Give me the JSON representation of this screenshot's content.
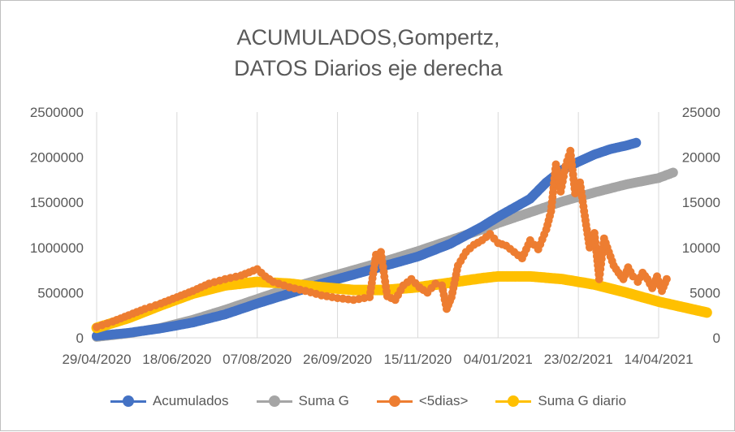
{
  "chart_data": {
    "type": "line",
    "title_line1": "ACUMULADOS,Gompertz,",
    "title_line2": "DATOS Diarios eje derecha",
    "x_tick_labels": [
      "29/04/2020",
      "18/06/2020",
      "07/08/2020",
      "26/09/2020",
      "15/11/2020",
      "04/01/2021",
      "23/02/2021",
      "14/04/2021"
    ],
    "x_range": [
      "29/04/2020",
      "14/04/2021"
    ],
    "y_left_ticks": [
      "0",
      "500000",
      "1000000",
      "1500000",
      "2000000",
      "2500000"
    ],
    "y_left_range": [
      0,
      2500000
    ],
    "y_right_ticks": [
      "0",
      "5000",
      "10000",
      "15000",
      "20000",
      "25000"
    ],
    "y_right_range": [
      0,
      25000
    ],
    "grid": "vertical",
    "legend_position": "bottom",
    "series": [
      {
        "name": "Acumulados",
        "axis": "left",
        "color": "#4472c4",
        "points": [
          [
            "2020-04-29",
            20000
          ],
          [
            "2020-05-19",
            55000
          ],
          [
            "2020-06-08",
            105000
          ],
          [
            "2020-06-28",
            170000
          ],
          [
            "2020-07-18",
            260000
          ],
          [
            "2020-08-07",
            380000
          ],
          [
            "2020-08-27",
            490000
          ],
          [
            "2020-09-16",
            600000
          ],
          [
            "2020-10-06",
            700000
          ],
          [
            "2020-10-26",
            800000
          ],
          [
            "2020-11-15",
            900000
          ],
          [
            "2020-12-05",
            1040000
          ],
          [
            "2020-12-25",
            1230000
          ],
          [
            "2021-01-04",
            1340000
          ],
          [
            "2021-01-24",
            1540000
          ],
          [
            "2021-02-03",
            1720000
          ],
          [
            "2021-02-13",
            1860000
          ],
          [
            "2021-02-23",
            1950000
          ],
          [
            "2021-03-05",
            2030000
          ],
          [
            "2021-03-15",
            2090000
          ],
          [
            "2021-03-25",
            2130000
          ],
          [
            "2021-03-31",
            2160000
          ]
        ]
      },
      {
        "name": "Suma G",
        "axis": "left",
        "color": "#a5a5a5",
        "points": [
          [
            "2020-04-29",
            10000
          ],
          [
            "2020-05-19",
            50000
          ],
          [
            "2020-06-08",
            110000
          ],
          [
            "2020-06-28",
            200000
          ],
          [
            "2020-07-18",
            310000
          ],
          [
            "2020-08-07",
            430000
          ],
          [
            "2020-08-27",
            550000
          ],
          [
            "2020-09-16",
            650000
          ],
          [
            "2020-10-06",
            750000
          ],
          [
            "2020-10-26",
            850000
          ],
          [
            "2020-11-15",
            960000
          ],
          [
            "2020-12-05",
            1080000
          ],
          [
            "2020-12-25",
            1200000
          ],
          [
            "2021-01-04",
            1270000
          ],
          [
            "2021-01-24",
            1390000
          ],
          [
            "2021-02-13",
            1510000
          ],
          [
            "2021-03-05",
            1610000
          ],
          [
            "2021-03-25",
            1700000
          ],
          [
            "2021-04-14",
            1770000
          ],
          [
            "2021-04-23",
            1830000
          ]
        ]
      },
      {
        "name": "<5dias>",
        "axis": "right",
        "color": "#ed7d31",
        "points": [
          [
            "2020-04-29",
            1200
          ],
          [
            "2020-05-09",
            1800
          ],
          [
            "2020-05-19",
            2500
          ],
          [
            "2020-05-29",
            3200
          ],
          [
            "2020-06-08",
            3800
          ],
          [
            "2020-06-18",
            4500
          ],
          [
            "2020-06-28",
            5200
          ],
          [
            "2020-07-08",
            6000
          ],
          [
            "2020-07-18",
            6500
          ],
          [
            "2020-07-28",
            6900
          ],
          [
            "2020-08-07",
            7600
          ],
          [
            "2020-08-12",
            6800
          ],
          [
            "2020-08-17",
            6200
          ],
          [
            "2020-08-27",
            5600
          ],
          [
            "2020-09-06",
            5200
          ],
          [
            "2020-09-16",
            4700
          ],
          [
            "2020-09-26",
            4400
          ],
          [
            "2020-10-06",
            4200
          ],
          [
            "2020-10-16",
            4500
          ],
          [
            "2020-10-20",
            9200
          ],
          [
            "2020-10-23",
            9500
          ],
          [
            "2020-10-27",
            4600
          ],
          [
            "2020-11-01",
            4200
          ],
          [
            "2020-11-06",
            5800
          ],
          [
            "2020-11-11",
            6500
          ],
          [
            "2020-11-16",
            5600
          ],
          [
            "2020-11-21",
            5000
          ],
          [
            "2020-11-26",
            6000
          ],
          [
            "2020-11-30",
            5800
          ],
          [
            "2020-12-03",
            3200
          ],
          [
            "2020-12-06",
            4500
          ],
          [
            "2020-12-10",
            8000
          ],
          [
            "2020-12-15",
            9500
          ],
          [
            "2020-12-20",
            10300
          ],
          [
            "2020-12-25",
            10800
          ],
          [
            "2020-12-30",
            11500
          ],
          [
            "2021-01-04",
            10500
          ],
          [
            "2021-01-09",
            10200
          ],
          [
            "2021-01-14",
            9500
          ],
          [
            "2021-01-19",
            8800
          ],
          [
            "2021-01-24",
            10800
          ],
          [
            "2021-01-29",
            9800
          ],
          [
            "2021-02-03",
            12000
          ],
          [
            "2021-02-06",
            14000
          ],
          [
            "2021-02-09",
            19200
          ],
          [
            "2021-02-12",
            16200
          ],
          [
            "2021-02-15",
            19000
          ],
          [
            "2021-02-18",
            20700
          ],
          [
            "2021-02-21",
            16000
          ],
          [
            "2021-02-24",
            17200
          ],
          [
            "2021-02-27",
            13500
          ],
          [
            "2021-03-02",
            10000
          ],
          [
            "2021-03-05",
            11600
          ],
          [
            "2021-03-08",
            6500
          ],
          [
            "2021-03-11",
            11000
          ],
          [
            "2021-03-14",
            9500
          ],
          [
            "2021-03-17",
            8000
          ],
          [
            "2021-03-20",
            7200
          ],
          [
            "2021-03-23",
            6500
          ],
          [
            "2021-03-26",
            7800
          ],
          [
            "2021-03-29",
            6800
          ],
          [
            "2021-04-01",
            6200
          ],
          [
            "2021-04-04",
            7200
          ],
          [
            "2021-04-07",
            6500
          ],
          [
            "2021-04-10",
            5500
          ],
          [
            "2021-04-13",
            6800
          ],
          [
            "2021-04-16",
            5200
          ],
          [
            "2021-04-19",
            6500
          ]
        ]
      },
      {
        "name": "Suma G diario",
        "axis": "right",
        "color": "#ffc000",
        "points": [
          [
            "2020-04-29",
            1100
          ],
          [
            "2020-05-19",
            2200
          ],
          [
            "2020-06-08",
            3600
          ],
          [
            "2020-06-28",
            4900
          ],
          [
            "2020-07-18",
            5800
          ],
          [
            "2020-08-07",
            6200
          ],
          [
            "2020-08-27",
            6000
          ],
          [
            "2020-09-16",
            5600
          ],
          [
            "2020-10-06",
            5300
          ],
          [
            "2020-10-26",
            5300
          ],
          [
            "2020-11-15",
            5600
          ],
          [
            "2020-12-05",
            6100
          ],
          [
            "2020-12-25",
            6600
          ],
          [
            "2021-01-04",
            6800
          ],
          [
            "2021-01-24",
            6800
          ],
          [
            "2021-02-13",
            6500
          ],
          [
            "2021-03-05",
            5900
          ],
          [
            "2021-03-25",
            5000
          ],
          [
            "2021-04-14",
            4000
          ],
          [
            "2021-05-04",
            3200
          ],
          [
            "2021-05-14",
            2800
          ]
        ]
      }
    ]
  }
}
